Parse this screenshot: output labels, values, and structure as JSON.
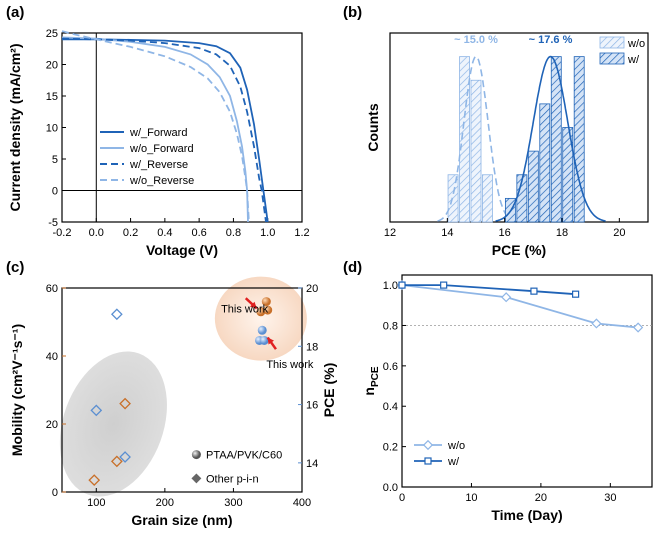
{
  "colors": {
    "dark_blue": "#1f63b7",
    "light_blue": "#8fb6e6",
    "mid_blue": "#5b8fd1",
    "orange": "#c8702a",
    "grey_ellipse": "#cfcfcf",
    "orange_ellipse": "#f7d8c2",
    "arrow_red": "#e02020"
  },
  "chart_data": [
    {
      "panel": "(a)",
      "type": "line",
      "xlabel": "Voltage (V)",
      "ylabel": "Current density (mA/cm²)",
      "xlim": [
        -0.2,
        1.2
      ],
      "ylim": [
        -5,
        25
      ],
      "xticks": [
        "-0.2",
        "0.0",
        "0.2",
        "0.4",
        "0.6",
        "0.8",
        "1.0",
        "1.2"
      ],
      "yticks": [
        "-5",
        "0",
        "5",
        "10",
        "15",
        "20",
        "25"
      ],
      "series": [
        {
          "name": "w/_Forward",
          "style": "solid",
          "color": "dark_blue",
          "points": [
            [
              -0.2,
              24.0
            ],
            [
              0.0,
              24.0
            ],
            [
              0.2,
              23.9
            ],
            [
              0.4,
              23.8
            ],
            [
              0.6,
              23.4
            ],
            [
              0.7,
              22.9
            ],
            [
              0.78,
              21.8
            ],
            [
              0.84,
              19.5
            ],
            [
              0.88,
              16.0
            ],
            [
              0.92,
              10.5
            ],
            [
              0.95,
              5.0
            ],
            [
              0.975,
              0.0
            ],
            [
              1.0,
              -5.0
            ]
          ]
        },
        {
          "name": "w/o_Forward",
          "style": "solid",
          "color": "light_blue",
          "points": [
            [
              -0.2,
              24.3
            ],
            [
              0.0,
              24.1
            ],
            [
              0.2,
              23.6
            ],
            [
              0.4,
              22.8
            ],
            [
              0.55,
              21.6
            ],
            [
              0.65,
              20.0
            ],
            [
              0.72,
              18.0
            ],
            [
              0.78,
              15.0
            ],
            [
              0.82,
              11.0
            ],
            [
              0.85,
              7.0
            ],
            [
              0.87,
              3.0
            ],
            [
              0.88,
              0.0
            ],
            [
              0.885,
              -5.0
            ]
          ]
        },
        {
          "name": "w/_Reverse",
          "style": "dashed",
          "color": "dark_blue",
          "points": [
            [
              -0.2,
              24.1
            ],
            [
              0.0,
              24.0
            ],
            [
              0.2,
              23.8
            ],
            [
              0.4,
              23.4
            ],
            [
              0.6,
              22.6
            ],
            [
              0.7,
              21.6
            ],
            [
              0.78,
              19.8
            ],
            [
              0.84,
              16.5
            ],
            [
              0.88,
              12.5
            ],
            [
              0.92,
              7.0
            ],
            [
              0.95,
              2.0
            ],
            [
              0.965,
              0.0
            ],
            [
              0.99,
              -5.0
            ]
          ]
        },
        {
          "name": "w/o_Reverse",
          "style": "dashed",
          "color": "light_blue",
          "points": [
            [
              -0.2,
              25.3
            ],
            [
              -0.1,
              24.6
            ],
            [
              0.0,
              24.0
            ],
            [
              0.2,
              22.8
            ],
            [
              0.4,
              21.3
            ],
            [
              0.55,
              19.6
            ],
            [
              0.65,
              17.8
            ],
            [
              0.72,
              15.6
            ],
            [
              0.78,
              12.5
            ],
            [
              0.82,
              9.0
            ],
            [
              0.85,
              5.5
            ],
            [
              0.87,
              2.0
            ],
            [
              0.88,
              0.0
            ],
            [
              0.89,
              -5.0
            ]
          ]
        }
      ]
    },
    {
      "panel": "(b)",
      "type": "bar",
      "xlabel": "PCE (%)",
      "ylabel": "Counts",
      "xlim": [
        12,
        21
      ],
      "xticks": [
        "12",
        "14",
        "16",
        "18",
        "20"
      ],
      "legend": [
        "w/o",
        "w/"
      ],
      "annotations": [
        "~ 15.0 %",
        "~ 17.6 %"
      ],
      "series": [
        {
          "name": "w/o",
          "color": "light_blue",
          "bin_centers": [
            14.2,
            14.6,
            15.0,
            15.4
          ],
          "counts": [
            2,
            7,
            6,
            2
          ],
          "fit_center": 15.0,
          "fit_width": 0.42,
          "fit_peak": 7.0
        },
        {
          "name": "w/",
          "color": "dark_blue",
          "bin_centers": [
            16.2,
            16.6,
            17.0,
            17.4,
            17.8,
            18.2,
            18.6
          ],
          "counts": [
            1,
            2,
            3,
            5,
            7,
            4,
            7
          ],
          "fit_center": 17.6,
          "fit_width": 0.6,
          "fit_peak": 7.0
        }
      ],
      "ymax": 8
    },
    {
      "panel": "(c)",
      "type": "scatter",
      "xlabel": "Grain size (nm)",
      "ylabel_left": "Mobility (cm²V⁻¹s⁻¹)",
      "ylabel_right": "PCE (%)",
      "xlim": [
        50,
        400
      ],
      "ylim_left": [
        0,
        60
      ],
      "ylim_right": [
        13,
        20
      ],
      "xticks": [
        "100",
        "200",
        "300",
        "400"
      ],
      "yticks_left": [
        "0",
        "20",
        "40",
        "60"
      ],
      "yticks_right": [
        "14",
        "16",
        "18",
        "20"
      ],
      "legend": [
        "PTAA/PVK/C60",
        "Other p-i-n"
      ],
      "annotations": [
        "This work",
        "This work"
      ],
      "series": [
        {
          "name": "This work mobility",
          "axis": "left",
          "marker": "sphere",
          "color": "orange",
          "points": [
            [
              340,
              53
            ],
            [
              348,
              56
            ],
            [
              350,
              53.5
            ]
          ]
        },
        {
          "name": "This work PCE",
          "axis": "right",
          "marker": "sphere",
          "color": "mid_blue",
          "points": [
            [
              338,
              18.2
            ],
            [
              342,
              18.55
            ],
            [
              345,
              18.2
            ]
          ]
        },
        {
          "name": "Other p-i-n mobility",
          "axis": "left",
          "marker": "diamond",
          "color": "orange",
          "points": [
            [
              97,
              3.5
            ],
            [
              130,
              9
            ],
            [
              142,
              26
            ]
          ]
        },
        {
          "name": "Other p-i-n PCE",
          "axis": "right",
          "marker": "diamond",
          "color": "mid_blue",
          "points": [
            [
              100,
              15.8
            ],
            [
              130,
              19.1
            ],
            [
              142,
              14.2
            ]
          ]
        }
      ]
    },
    {
      "panel": "(d)",
      "type": "line",
      "xlabel": "Time (Day)",
      "ylabel": "nPCE",
      "xlim": [
        0,
        36
      ],
      "ylim": [
        0.0,
        1.05
      ],
      "xticks": [
        "0",
        "10",
        "20",
        "30"
      ],
      "yticks": [
        "0.0",
        "0.2",
        "0.4",
        "0.6",
        "0.8",
        "1.0"
      ],
      "reference_line": 0.8,
      "legend": [
        "w/o",
        "w/"
      ],
      "series": [
        {
          "name": "w/o",
          "marker": "diamond",
          "color": "light_blue",
          "points": [
            [
              0,
              1.0
            ],
            [
              15,
              0.94
            ],
            [
              28,
              0.81
            ],
            [
              34,
              0.79
            ]
          ]
        },
        {
          "name": "w/",
          "marker": "square",
          "color": "dark_blue",
          "points": [
            [
              0,
              1.0
            ],
            [
              6,
              1.0
            ],
            [
              19,
              0.97
            ],
            [
              25,
              0.955
            ]
          ]
        }
      ]
    }
  ]
}
